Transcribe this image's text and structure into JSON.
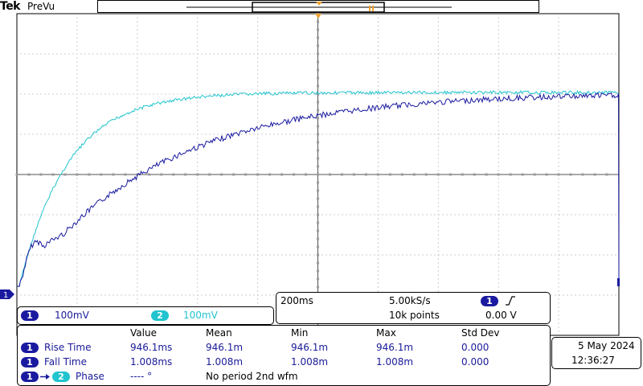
{
  "header": {
    "brand": "Tek",
    "mode": "PreVu"
  },
  "channels": {
    "ch1": {
      "id": "1",
      "scale": "100mV",
      "color": "#1a1aa0"
    },
    "ch2": {
      "id": "2",
      "scale": "100mV",
      "color": "#21c4cf"
    }
  },
  "acquisition": {
    "timebase": "200ms",
    "sample_rate": "5.00kS/s",
    "record_length": "10k points",
    "trigger_source": "1",
    "trigger_slope": "rising-edge-icon",
    "trigger_level": "0.00 V"
  },
  "measurements": {
    "headers": [
      "Value",
      "Mean",
      "Min",
      "Max",
      "Std Dev"
    ],
    "rows": [
      {
        "source": "1",
        "name": "Rise Time",
        "value": "946.1ms",
        "mean": "946.1m",
        "min": "946.1m",
        "max": "946.1m",
        "std": "0.000"
      },
      {
        "source": "1",
        "name": "Fall Time",
        "value": "1.008ms",
        "mean": "1.008m",
        "min": "1.008m",
        "max": "1.008m",
        "std": "0.000"
      }
    ],
    "phase": {
      "source_a": "1",
      "source_b": "2",
      "name": "Phase",
      "value": "---- °",
      "note": "No period 2nd wfm"
    }
  },
  "datetime": {
    "date": "5 May  2024",
    "time": "12:36:27"
  },
  "colors": {
    "grid": "#9a9a9a",
    "trigger_marker": "#f0a030",
    "ch1_trace": "#1a1aa0",
    "ch2_trace": "#21c4cf"
  }
}
